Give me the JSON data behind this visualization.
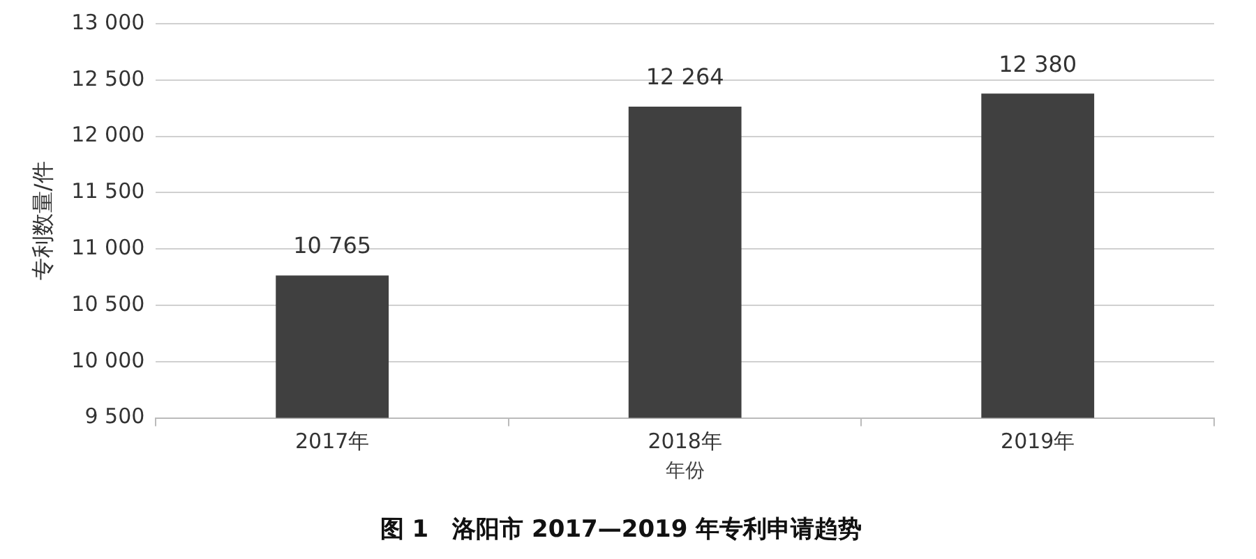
{
  "chart_data": {
    "type": "bar",
    "title": "图 1　洛阳市 2017—2019 年专利申请趋势",
    "xlabel": "年份",
    "ylabel": "专利数量/件",
    "categories": [
      "2017年",
      "2018年",
      "2019年"
    ],
    "values": [
      10765,
      12264,
      12380
    ],
    "value_labels": [
      "10 765",
      "12 264",
      "12 380"
    ],
    "color": "#404040",
    "ylim": [
      9500,
      13000
    ],
    "yticks": [
      {
        "value": 9500,
        "label": "9 500"
      },
      {
        "value": 10000,
        "label": "10 000"
      },
      {
        "value": 10500,
        "label": "10 500"
      },
      {
        "value": 11000,
        "label": "11 000"
      },
      {
        "value": 11500,
        "label": "11 500"
      },
      {
        "value": 12000,
        "label": "12 000"
      },
      {
        "value": 12500,
        "label": "12 500"
      },
      {
        "value": 13000,
        "label": "13 000"
      }
    ],
    "grid": "y",
    "legend": false
  }
}
